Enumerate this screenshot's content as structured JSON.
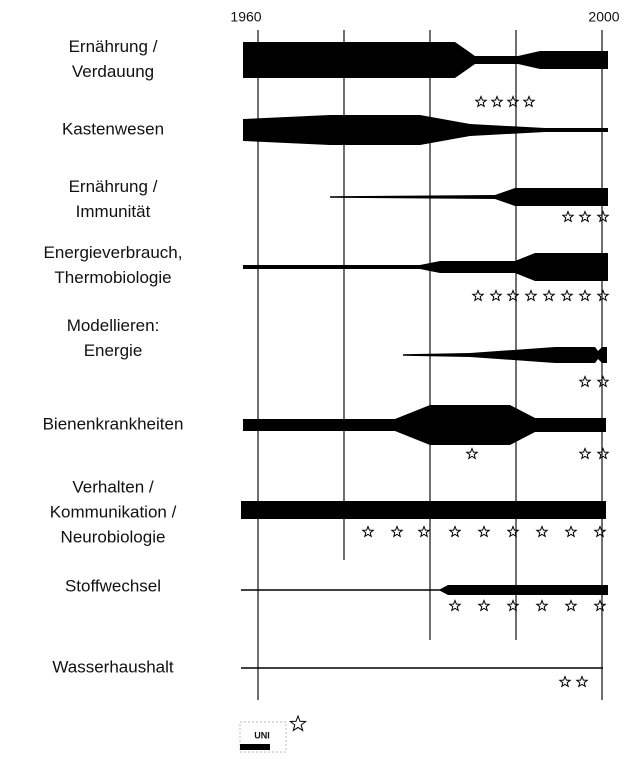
{
  "axis": {
    "start": "1960",
    "end": "2000"
  },
  "topics": [
    {
      "label": [
        "Ernährung /",
        "Verdauung"
      ]
    },
    {
      "label": [
        "Kastenwesen"
      ]
    },
    {
      "label": [
        "Ernährung /",
        "Immunität"
      ]
    },
    {
      "label": [
        "Energieverbrauch,",
        "Thermobiologie"
      ]
    },
    {
      "label": [
        "Modellieren:",
        "Energie"
      ]
    },
    {
      "label": [
        "Bienenkrankheiten"
      ]
    },
    {
      "label": [
        "Verhalten /",
        "Kommunikation /",
        "Neurobiologie"
      ]
    },
    {
      "label": [
        "Stoffwechsel"
      ]
    },
    {
      "label": [
        "Wasserhaushalt"
      ]
    }
  ],
  "logo": {
    "text": "UNI"
  }
}
